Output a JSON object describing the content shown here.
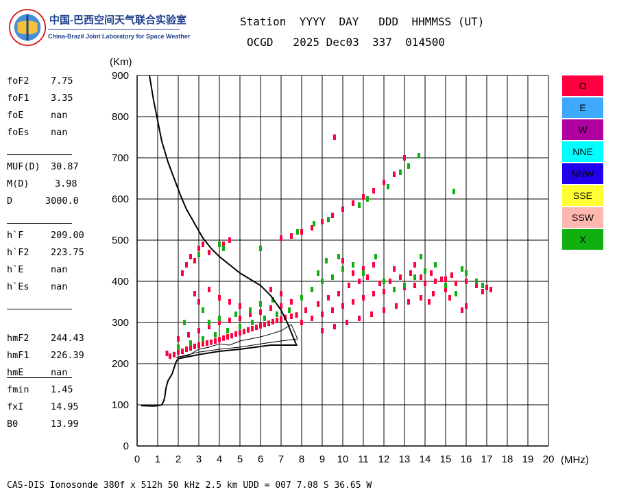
{
  "logo": {
    "text_cn": "中国-巴西空间天气联合实验室",
    "text_en": "China-Brazil Joint Laboratory for Space Weather"
  },
  "header": {
    "line1": "Station  YYYY  DAY   DDD  HHMMSS (UT)",
    "line2": "OCGD   2025 Dec03  337  014500"
  },
  "parameters": [
    [
      {
        "name": "foF2",
        "value": "7.75"
      },
      {
        "name": "foF1",
        "value": "3.35"
      },
      {
        "name": "foE",
        "value": "nan"
      },
      {
        "name": "foEs",
        "value": "nan"
      }
    ],
    [
      {
        "name": "MUF(D)",
        "value": "30.87"
      },
      {
        "name": "M(D)",
        "value": "3.98"
      },
      {
        "name": "D",
        "value": "3000.0"
      }
    ],
    [
      {
        "name": "h`F",
        "value": "209.00"
      },
      {
        "name": "h`F2",
        "value": "223.75"
      },
      {
        "name": "h`E",
        "value": "nan"
      },
      {
        "name": "h`Es",
        "value": "nan"
      }
    ],
    [
      {
        "name": "hmF2",
        "value": "244.43"
      },
      {
        "name": "hmF1",
        "value": "226.39"
      },
      {
        "name": "hmE",
        "value": "nan"
      }
    ],
    [
      {
        "name": "fmin",
        "value": "1.45"
      },
      {
        "name": "fxI",
        "value": "14.95"
      },
      {
        "name": "B0",
        "value": "13.99"
      }
    ]
  ],
  "legend": [
    {
      "label": "O",
      "color": "#ff0040"
    },
    {
      "label": "E",
      "color": "#3fa9ff"
    },
    {
      "label": "W",
      "color": "#b0009f"
    },
    {
      "label": "NNE",
      "color": "#00ffff"
    },
    {
      "label": "NNW",
      "color": "#2200ee"
    },
    {
      "label": "SSE",
      "color": "#ffff33"
    },
    {
      "label": "SSW",
      "color": "#ffb8b0"
    },
    {
      "label": "X",
      "color": "#11b011"
    }
  ],
  "footer": "CAS-DIS Ionosonde 380f x 512h 50 kHz 2.5 km UDD = 007 7.08 S 36.65 W",
  "chart_data": {
    "type": "scatter",
    "xlabel": "(MHz)",
    "ylabel": "(Km)",
    "xlim": [
      0,
      20
    ],
    "ylim": [
      0,
      900
    ],
    "xticks": [
      0,
      1,
      2,
      3,
      4,
      5,
      6,
      7,
      8,
      9,
      10,
      11,
      12,
      13,
      14,
      15,
      16,
      17,
      18,
      19,
      20
    ],
    "yticks": [
      0,
      100,
      200,
      300,
      400,
      500,
      600,
      700,
      800,
      900
    ],
    "grid": true,
    "series": [
      {
        "mode": "O",
        "color": "#ff0040",
        "points": [
          [
            1.45,
            225
          ],
          [
            1.6,
            218
          ],
          [
            1.8,
            222
          ],
          [
            2.0,
            228
          ],
          [
            2.2,
            230
          ],
          [
            2.4,
            235
          ],
          [
            2.6,
            238
          ],
          [
            2.8,
            242
          ],
          [
            3.0,
            245
          ],
          [
            3.2,
            248
          ],
          [
            3.4,
            250
          ],
          [
            3.6,
            252
          ],
          [
            3.8,
            255
          ],
          [
            4.0,
            258
          ],
          [
            4.2,
            262
          ],
          [
            4.4,
            265
          ],
          [
            4.6,
            268
          ],
          [
            4.8,
            272
          ],
          [
            5.0,
            275
          ],
          [
            5.2,
            278
          ],
          [
            5.4,
            282
          ],
          [
            5.6,
            285
          ],
          [
            5.8,
            288
          ],
          [
            6.0,
            292
          ],
          [
            6.2,
            295
          ],
          [
            6.4,
            298
          ],
          [
            6.6,
            302
          ],
          [
            6.8,
            305
          ],
          [
            7.0,
            308
          ],
          [
            7.2,
            312
          ],
          [
            7.5,
            315
          ],
          [
            7.75,
            318
          ],
          [
            2.0,
            260
          ],
          [
            2.5,
            270
          ],
          [
            3.0,
            280
          ],
          [
            3.5,
            290
          ],
          [
            4.0,
            300
          ],
          [
            4.5,
            305
          ],
          [
            5.0,
            310
          ],
          [
            5.5,
            320
          ],
          [
            6.0,
            325
          ],
          [
            6.5,
            335
          ],
          [
            7.0,
            340
          ],
          [
            7.5,
            350
          ],
          [
            8.0,
            300
          ],
          [
            8.5,
            310
          ],
          [
            9.0,
            320
          ],
          [
            9.5,
            330
          ],
          [
            10.0,
            340
          ],
          [
            10.5,
            350
          ],
          [
            11.0,
            360
          ],
          [
            11.5,
            370
          ],
          [
            12.0,
            375
          ],
          [
            12.5,
            380
          ],
          [
            13.0,
            385
          ],
          [
            13.5,
            390
          ],
          [
            14.0,
            395
          ],
          [
            14.5,
            400
          ],
          [
            15.0,
            405
          ],
          [
            15.5,
            395
          ],
          [
            16.0,
            400
          ],
          [
            16.5,
            390
          ],
          [
            17.0,
            385
          ],
          [
            8.2,
            330
          ],
          [
            8.8,
            345
          ],
          [
            9.3,
            360
          ],
          [
            9.8,
            370
          ],
          [
            10.3,
            390
          ],
          [
            10.8,
            400
          ],
          [
            11.2,
            410
          ],
          [
            11.8,
            395
          ],
          [
            12.3,
            400
          ],
          [
            12.8,
            410
          ],
          [
            13.3,
            420
          ],
          [
            13.8,
            410
          ],
          [
            14.3,
            420
          ],
          [
            14.8,
            405
          ],
          [
            15.3,
            415
          ],
          [
            9.0,
            280
          ],
          [
            9.6,
            290
          ],
          [
            10.2,
            300
          ],
          [
            10.8,
            310
          ],
          [
            11.4,
            320
          ],
          [
            12.0,
            330
          ],
          [
            12.6,
            340
          ],
          [
            13.2,
            350
          ],
          [
            13.8,
            360
          ],
          [
            14.4,
            370
          ],
          [
            15.0,
            380
          ],
          [
            10.5,
            420
          ],
          [
            11.0,
            430
          ],
          [
            11.5,
            440
          ],
          [
            10.0,
            450
          ],
          [
            2.2,
            420
          ],
          [
            2.4,
            440
          ],
          [
            2.6,
            460
          ],
          [
            2.8,
            450
          ],
          [
            3.0,
            480
          ],
          [
            3.5,
            470
          ],
          [
            3.2,
            490
          ],
          [
            4.5,
            500
          ],
          [
            4.2,
            490
          ],
          [
            7.0,
            505
          ],
          [
            7.5,
            510
          ],
          [
            8.0,
            520
          ],
          [
            8.5,
            530
          ],
          [
            9.0,
            545
          ],
          [
            9.5,
            560
          ],
          [
            10.0,
            575
          ],
          [
            10.5,
            590
          ],
          [
            11.0,
            605
          ],
          [
            11.5,
            620
          ],
          [
            12.0,
            640
          ],
          [
            12.5,
            660
          ],
          [
            13.0,
            700
          ],
          [
            9.6,
            750
          ],
          [
            3.5,
            380
          ],
          [
            4.0,
            360
          ],
          [
            4.5,
            350
          ],
          [
            5.0,
            340
          ],
          [
            3.0,
            350
          ],
          [
            2.8,
            370
          ],
          [
            6.5,
            380
          ],
          [
            7.0,
            370
          ],
          [
            14.2,
            350
          ],
          [
            15.2,
            360
          ],
          [
            16.0,
            340
          ],
          [
            15.8,
            330
          ],
          [
            16.8,
            375
          ],
          [
            17.2,
            380
          ],
          [
            12.5,
            430
          ],
          [
            13.5,
            440
          ]
        ]
      },
      {
        "mode": "X",
        "color": "#11b011",
        "points": [
          [
            2.0,
            240
          ],
          [
            2.6,
            250
          ],
          [
            3.2,
            260
          ],
          [
            3.8,
            270
          ],
          [
            4.4,
            280
          ],
          [
            5.0,
            290
          ],
          [
            5.6,
            300
          ],
          [
            6.2,
            310
          ],
          [
            6.8,
            320
          ],
          [
            7.4,
            330
          ],
          [
            3.5,
            300
          ],
          [
            4.0,
            310
          ],
          [
            4.8,
            320
          ],
          [
            5.5,
            330
          ],
          [
            6.0,
            345
          ],
          [
            6.6,
            355
          ],
          [
            8.0,
            360
          ],
          [
            8.5,
            380
          ],
          [
            9.0,
            400
          ],
          [
            9.5,
            410
          ],
          [
            10.0,
            430
          ],
          [
            10.5,
            440
          ],
          [
            11.0,
            420
          ],
          [
            12.0,
            400
          ],
          [
            12.5,
            380
          ],
          [
            13.0,
            390
          ],
          [
            13.5,
            410
          ],
          [
            14.0,
            425
          ],
          [
            14.5,
            440
          ],
          [
            15.0,
            390
          ],
          [
            15.5,
            370
          ],
          [
            16.0,
            420
          ],
          [
            16.5,
            400
          ],
          [
            16.8,
            390
          ],
          [
            8.8,
            420
          ],
          [
            9.2,
            450
          ],
          [
            9.8,
            460
          ],
          [
            11.6,
            460
          ],
          [
            13.8,
            460
          ],
          [
            15.8,
            430
          ],
          [
            3.0,
            465
          ],
          [
            4.0,
            490
          ],
          [
            4.2,
            480
          ],
          [
            6.0,
            480
          ],
          [
            7.8,
            520
          ],
          [
            8.6,
            540
          ],
          [
            9.3,
            550
          ],
          [
            10.8,
            585
          ],
          [
            11.2,
            600
          ],
          [
            12.2,
            630
          ],
          [
            12.8,
            665
          ],
          [
            13.2,
            680
          ],
          [
            13.7,
            705
          ],
          [
            15.4,
            618
          ],
          [
            3.2,
            330
          ],
          [
            2.3,
            300
          ]
        ]
      }
    ],
    "trace_profile": [
      [
        0.6,
        900
      ],
      [
        0.8,
        840
      ],
      [
        1.0,
        790
      ],
      [
        1.2,
        740
      ],
      [
        1.5,
        690
      ],
      [
        1.8,
        650
      ],
      [
        2.1,
        610
      ],
      [
        2.4,
        575
      ],
      [
        2.8,
        540
      ],
      [
        3.2,
        505
      ],
      [
        3.6,
        480
      ],
      [
        4.0,
        460
      ],
      [
        4.5,
        440
      ],
      [
        5.0,
        420
      ],
      [
        5.5,
        405
      ],
      [
        6.0,
        390
      ],
      [
        6.5,
        365
      ],
      [
        7.0,
        330
      ],
      [
        7.3,
        300
      ],
      [
        7.5,
        275
      ],
      [
        7.75,
        245
      ],
      [
        6.5,
        245
      ],
      [
        5.0,
        235
      ],
      [
        4.0,
        230
      ],
      [
        3.0,
        222
      ],
      [
        2.3,
        215
      ],
      [
        2.0,
        212
      ],
      [
        1.9,
        205
      ],
      [
        1.7,
        175
      ],
      [
        1.5,
        158
      ],
      [
        1.4,
        140
      ],
      [
        1.35,
        120
      ],
      [
        1.3,
        110
      ],
      [
        1.2,
        100
      ],
      [
        1.0,
        98
      ],
      [
        0.8,
        97
      ],
      [
        0.2,
        98
      ]
    ],
    "trace_inner": [
      [
        1.9,
        215
      ],
      [
        2.5,
        220
      ],
      [
        3.0,
        235
      ],
      [
        3.5,
        240
      ],
      [
        4.0,
        248
      ],
      [
        4.5,
        245
      ],
      [
        5.0,
        255
      ],
      [
        5.5,
        260
      ],
      [
        6.0,
        265
      ],
      [
        6.5,
        272
      ],
      [
        7.0,
        280
      ],
      [
        7.5,
        295
      ],
      [
        7.8,
        260
      ],
      [
        7.0,
        255
      ],
      [
        6.0,
        248
      ],
      [
        5.0,
        240
      ],
      [
        4.0,
        235
      ],
      [
        3.0,
        228
      ],
      [
        2.5,
        222
      ],
      [
        1.9,
        215
      ]
    ]
  }
}
